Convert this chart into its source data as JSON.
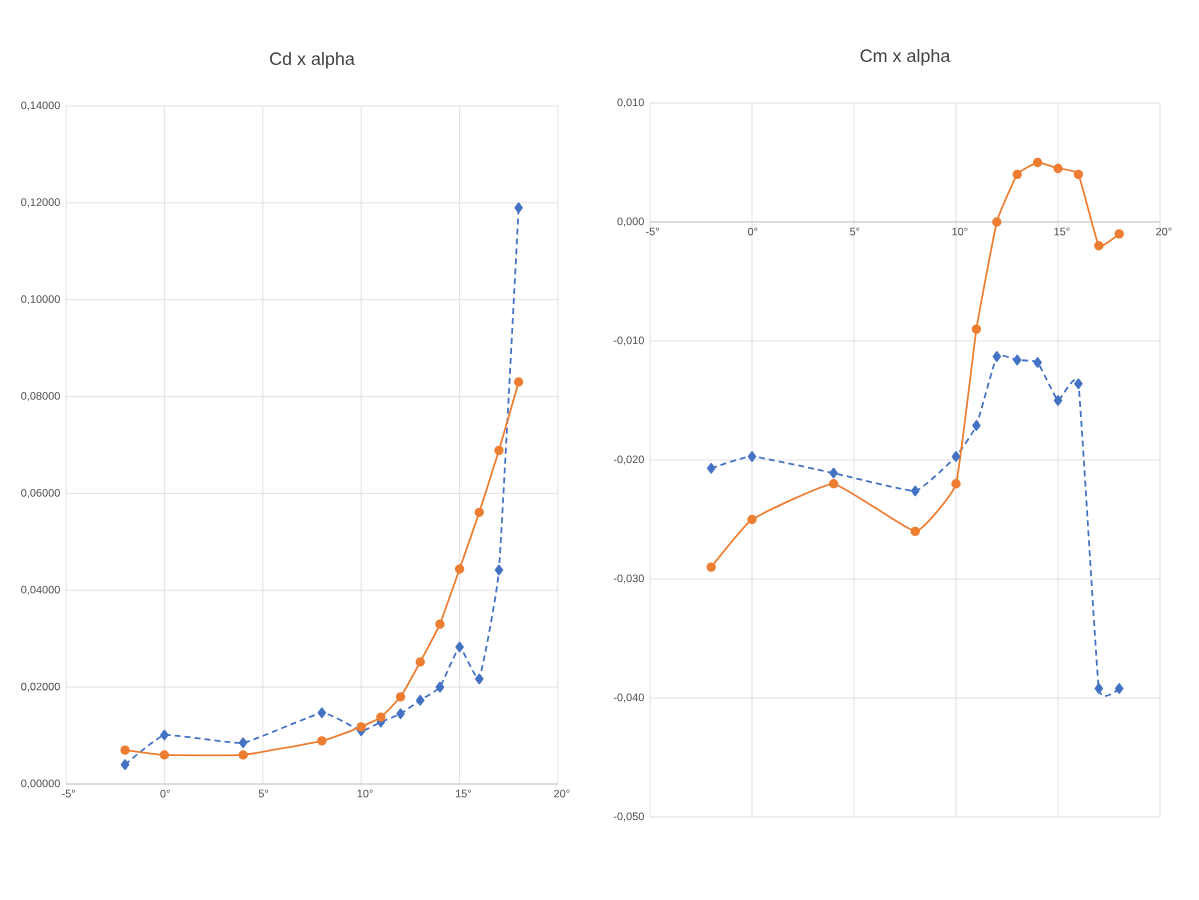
{
  "chart_data": [
    {
      "type": "line",
      "title": "Cd x alpha",
      "grid": true,
      "xlim": [
        -5,
        20
      ],
      "ylim": [
        0,
        0.14
      ],
      "xticks": [
        {
          "value": -5,
          "label": "-5°"
        },
        {
          "value": 0,
          "label": "0°"
        },
        {
          "value": 5,
          "label": "5°"
        },
        {
          "value": 10,
          "label": "10°"
        },
        {
          "value": 15,
          "label": "15°"
        },
        {
          "value": 20,
          "label": "20°"
        }
      ],
      "yticks": [
        {
          "value": 0,
          "label": "0,00000"
        },
        {
          "value": 0.02,
          "label": "0,02000"
        },
        {
          "value": 0.04,
          "label": "0,04000"
        },
        {
          "value": 0.06,
          "label": "0,06000"
        },
        {
          "value": 0.08,
          "label": "0,08000"
        },
        {
          "value": 0.1,
          "label": "0,10000"
        },
        {
          "value": 0.12,
          "label": "0,12000"
        },
        {
          "value": 0.14,
          "label": "0,14000"
        }
      ],
      "series": [
        {
          "color": "#4472c4",
          "marker": "diamond",
          "line_style": "dashed",
          "x": [
            -2,
            0,
            4,
            8,
            10,
            11,
            12,
            13,
            14,
            15,
            16,
            17,
            18
          ],
          "values": [
            0.004,
            0.0101,
            0.0085,
            0.0147,
            0.011,
            0.0128,
            0.0145,
            0.0173,
            0.02,
            0.0283,
            0.0217,
            0.0442,
            0.119
          ]
        },
        {
          "color": "#ed7d31",
          "marker": "circle",
          "line_style": "solid",
          "x": [
            -2,
            0,
            4,
            8,
            10,
            11,
            12,
            13,
            14,
            15,
            16,
            17,
            18
          ],
          "values": [
            0.007,
            0.006,
            0.006,
            0.0089,
            0.0118,
            0.0138,
            0.018,
            0.0252,
            0.033,
            0.0444,
            0.0561,
            0.0689,
            0.083
          ]
        }
      ]
    },
    {
      "type": "line",
      "title": "Cm x alpha",
      "grid": true,
      "xlim": [
        -5,
        20
      ],
      "ylim": [
        -0.05,
        0.01
      ],
      "xticks": [
        {
          "value": -5,
          "label": "-5°"
        },
        {
          "value": 0,
          "label": "0°"
        },
        {
          "value": 5,
          "label": "5°"
        },
        {
          "value": 10,
          "label": "10°"
        },
        {
          "value": 15,
          "label": "15°"
        },
        {
          "value": 20,
          "label": "20°"
        }
      ],
      "yticks": [
        {
          "value": -0.05,
          "label": "-0,050"
        },
        {
          "value": -0.04,
          "label": "-0,040"
        },
        {
          "value": -0.03,
          "label": "-0,030"
        },
        {
          "value": -0.02,
          "label": "-0,020"
        },
        {
          "value": -0.01,
          "label": "-0,010"
        },
        {
          "value": 0,
          "label": "0,000"
        },
        {
          "value": 0.01,
          "label": "0,010"
        }
      ],
      "series": [
        {
          "color": "#4472c4",
          "marker": "diamond",
          "line_style": "dashed",
          "x": [
            -2,
            0,
            4,
            8,
            10,
            11,
            12,
            13,
            14,
            15,
            16,
            17,
            18
          ],
          "values": [
            -0.0207,
            -0.0197,
            -0.0211,
            -0.0226,
            -0.0197,
            -0.0171,
            -0.0113,
            -0.0116,
            -0.0118,
            -0.015,
            -0.0136,
            -0.0392,
            -0.0392
          ]
        },
        {
          "color": "#ed7d31",
          "marker": "circle",
          "line_style": "solid",
          "x": [
            -2,
            0,
            4,
            8,
            10,
            11,
            12,
            13,
            14,
            15,
            16,
            17,
            18
          ],
          "values": [
            -0.029,
            -0.025,
            -0.022,
            -0.026,
            -0.022,
            -0.009,
            0,
            0.004,
            0.005,
            0.0045,
            0.004,
            -0.002,
            -0.001
          ]
        }
      ]
    }
  ]
}
